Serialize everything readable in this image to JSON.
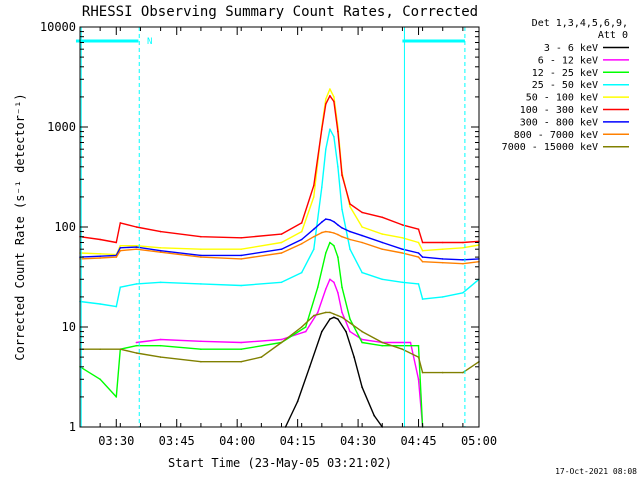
{
  "chart_data": {
    "type": "line",
    "title": "RHESSI Observing Summary Count Rates, Corrected",
    "xlabel": "Start Time (23-May-05 03:21:02)",
    "ylabel": "Corrected Count Rate (s⁻¹ detector⁻¹)",
    "y_scale": "log",
    "ylim": [
      1,
      10000
    ],
    "xlim_minutes": [
      0,
      99
    ],
    "x_tick_labels": [
      "03:30",
      "03:45",
      "04:00",
      "04:15",
      "04:30",
      "04:45",
      "05:00"
    ],
    "x_tick_minutes": [
      9,
      24,
      39,
      54,
      69,
      84,
      99
    ],
    "y_tick_labels": [
      "1",
      "10",
      "100",
      "1000",
      "10000"
    ],
    "y_ticks": [
      1,
      10,
      100,
      1000,
      10000
    ],
    "detector_note": [
      "Det 1,3,4,5,6,9,",
      "Att 0"
    ],
    "night_marker": "N",
    "footer_date": "17-Oct-2021 08:08",
    "series": [
      {
        "name": "3 - 6 keV",
        "color": "#000000",
        "x": [
          51,
          54,
          57,
          60,
          62,
          63,
          64,
          66,
          68,
          70,
          73,
          75
        ],
        "y": [
          1,
          1.8,
          4,
          9,
          12,
          12.5,
          12,
          9,
          5,
          2.5,
          1.3,
          1
        ]
      },
      {
        "name": "6 - 12 keV",
        "color": "#ff00ff",
        "x": [
          14,
          20,
          30,
          40,
          50,
          56,
          59,
          61,
          62,
          63,
          64,
          65,
          67,
          70,
          75,
          82,
          84,
          85
        ],
        "y": [
          7,
          7.5,
          7.2,
          7,
          7.5,
          9,
          14,
          24,
          30,
          28,
          22,
          14,
          9,
          7.5,
          7,
          7,
          3,
          1
        ]
      },
      {
        "name": "12 - 25 keV",
        "color": "#00ff00",
        "x": [
          0,
          5,
          9,
          10,
          14,
          20,
          30,
          40,
          50,
          56,
          59,
          61,
          62,
          63,
          64,
          65,
          67,
          70,
          75,
          84,
          85
        ],
        "y": [
          4,
          3,
          2,
          6,
          6.5,
          6.5,
          6,
          6,
          7,
          10,
          25,
          55,
          70,
          65,
          50,
          25,
          12,
          7,
          6.5,
          6.5,
          1
        ]
      },
      {
        "name": "25 - 50 keV",
        "color": "#00ffff",
        "x": [
          0,
          5,
          9,
          10,
          14,
          20,
          30,
          40,
          50,
          55,
          58,
          60,
          61,
          62,
          63,
          64,
          65,
          67,
          70,
          75,
          80,
          84,
          85,
          90,
          95,
          99
        ],
        "y": [
          18,
          17,
          16,
          25,
          27,
          28,
          27,
          26,
          28,
          35,
          60,
          250,
          600,
          950,
          800,
          400,
          150,
          60,
          35,
          30,
          28,
          27,
          19,
          20,
          22,
          30
        ]
      },
      {
        "name": "50 - 100 keV",
        "color": "#ffff00",
        "x": [
          0,
          5,
          9,
          10,
          14,
          20,
          30,
          40,
          50,
          55,
          58,
          60,
          61,
          62,
          63,
          64,
          65,
          67,
          70,
          75,
          80,
          84,
          85,
          90,
          95,
          99
        ],
        "y": [
          55,
          54,
          53,
          65,
          65,
          62,
          60,
          60,
          70,
          90,
          200,
          1000,
          1900,
          2400,
          2000,
          1000,
          350,
          160,
          100,
          85,
          78,
          70,
          58,
          60,
          62,
          66
        ]
      },
      {
        "name": "100 - 300 keV",
        "color": "#ff0000",
        "x": [
          0,
          5,
          9,
          10,
          14,
          20,
          30,
          40,
          50,
          55,
          58,
          60,
          61,
          62,
          63,
          64,
          65,
          67,
          70,
          75,
          80,
          84,
          85,
          90,
          95,
          99
        ],
        "y": [
          80,
          75,
          70,
          110,
          100,
          90,
          80,
          78,
          85,
          110,
          260,
          950,
          1700,
          2050,
          1800,
          900,
          330,
          170,
          140,
          125,
          105,
          95,
          70,
          70,
          70,
          72
        ]
      },
      {
        "name": "300 - 800 keV",
        "color": "#0000ff",
        "x": [
          0,
          5,
          9,
          10,
          14,
          20,
          30,
          40,
          50,
          55,
          58,
          60,
          61,
          62,
          63,
          64,
          65,
          67,
          70,
          75,
          80,
          84,
          85,
          90,
          95,
          99
        ],
        "y": [
          50,
          51,
          52,
          62,
          63,
          58,
          52,
          52,
          60,
          75,
          95,
          112,
          120,
          118,
          113,
          105,
          98,
          90,
          82,
          70,
          60,
          55,
          50,
          48,
          47,
          48
        ]
      },
      {
        "name": "800 - 7000 keV",
        "color": "#ff8000",
        "x": [
          0,
          5,
          9,
          10,
          14,
          20,
          30,
          40,
          50,
          55,
          58,
          60,
          61,
          62,
          63,
          64,
          65,
          67,
          70,
          75,
          80,
          84,
          85,
          90,
          95,
          99
        ],
        "y": [
          48,
          49,
          50,
          58,
          60,
          56,
          50,
          48,
          55,
          68,
          80,
          88,
          90,
          89,
          87,
          84,
          80,
          75,
          70,
          60,
          55,
          50,
          45,
          44,
          43,
          45
        ]
      },
      {
        "name": "7000 - 15000 keV",
        "color": "#808000",
        "x": [
          0,
          5,
          10,
          14,
          20,
          30,
          40,
          45,
          50,
          55,
          58,
          61,
          62,
          63,
          64,
          65,
          67,
          70,
          75,
          80,
          84,
          85,
          90,
          95,
          99
        ],
        "y": [
          6,
          6,
          6,
          5.5,
          5,
          4.5,
          4.5,
          5,
          7,
          10,
          13,
          14,
          14,
          13.5,
          13,
          12.5,
          11,
          9,
          7,
          6,
          5,
          3.5,
          3.5,
          3.5,
          4.5
        ]
      }
    ]
  }
}
